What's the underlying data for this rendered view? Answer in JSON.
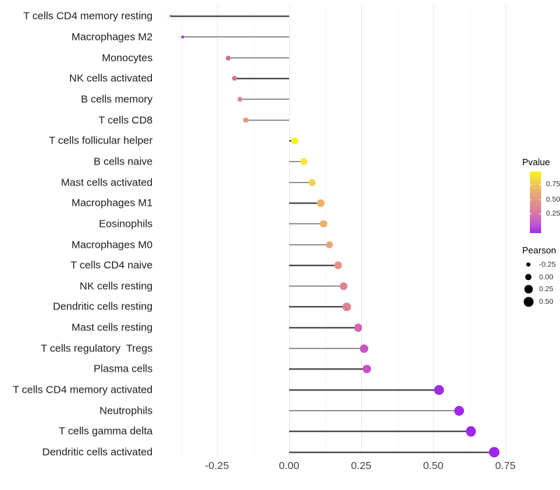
{
  "chart_data": {
    "type": "scatter",
    "variant": "lollipop",
    "title": "",
    "xlabel": "",
    "ylabel": "",
    "grid": "vertical-major-minor",
    "legend_position": "right",
    "x_ticks": [
      -0.25,
      0.0,
      0.25,
      0.5,
      0.75
    ],
    "x_tick_labels": [
      "-0.25",
      "0.00",
      "0.25",
      "0.50",
      "0.75"
    ],
    "xlim": [
      -0.46,
      0.8
    ],
    "stem_color": "#3a3a3a",
    "points": [
      {
        "label": "T cells CD4 memory resting",
        "pearson": -0.41,
        "color": "#9330DA"
      },
      {
        "label": "Macrophages M2",
        "pearson": -0.37,
        "color": "#9632DC"
      },
      {
        "label": "Monocytes",
        "pearson": -0.21,
        "color": "#C9709F"
      },
      {
        "label": "NK cells activated",
        "pearson": -0.19,
        "color": "#CE7095"
      },
      {
        "label": "B cells memory",
        "pearson": -0.17,
        "color": "#DD8A89"
      },
      {
        "label": "T cells CD8",
        "pearson": -0.15,
        "color": "#E39A7D"
      },
      {
        "label": "T cells follicular helper",
        "pearson": 0.02,
        "color": "#F7F122"
      },
      {
        "label": "B cells naive",
        "pearson": 0.05,
        "color": "#F6E635"
      },
      {
        "label": "Mast cells activated",
        "pearson": 0.08,
        "color": "#F3CF52"
      },
      {
        "label": "Macrophages M1",
        "pearson": 0.11,
        "color": "#EDB36A"
      },
      {
        "label": "Eosinophils",
        "pearson": 0.12,
        "color": "#EDB166"
      },
      {
        "label": "Macrophages M0",
        "pearson": 0.14,
        "color": "#EBA478"
      },
      {
        "label": "T cells CD4 naive",
        "pearson": 0.17,
        "color": "#E79284"
      },
      {
        "label": "NK cells resting",
        "pearson": 0.19,
        "color": "#E08292"
      },
      {
        "label": "Dendritic cells resting",
        "pearson": 0.2,
        "color": "#DE8094"
      },
      {
        "label": "Mast cells resting",
        "pearson": 0.24,
        "color": "#D466B4"
      },
      {
        "label": "T cells regulatory  Tregs",
        "pearson": 0.26,
        "color": "#C953C5"
      },
      {
        "label": "Plasma cells",
        "pearson": 0.27,
        "color": "#C750C8"
      },
      {
        "label": "T cells CD4 memory activated",
        "pearson": 0.52,
        "color": "#A22BE8"
      },
      {
        "label": "Neutrophils",
        "pearson": 0.59,
        "color": "#A02AEA"
      },
      {
        "label": "T cells gamma delta",
        "pearson": 0.63,
        "color": "#9F29EB"
      },
      {
        "label": "Dendritic cells activated",
        "pearson": 0.71,
        "color": "#9D28EC"
      }
    ],
    "legend_pvalue": {
      "title": "Pvalue",
      "tick_labels": [
        "0.75",
        "0.50",
        "0.25"
      ],
      "gradient_stops_top_to_bottom": [
        "#F8F122",
        "#F3D24C",
        "#EBAB72",
        "#E39089",
        "#DA79A6",
        "#C65AD0",
        "#A12AEB"
      ]
    },
    "legend_pearson": {
      "title": "Pearson",
      "tick_labels": [
        "-0.25",
        "0.00",
        "0.25",
        "0.50"
      ],
      "tick_values": [
        -0.25,
        0.0,
        0.25,
        0.5
      ]
    }
  }
}
